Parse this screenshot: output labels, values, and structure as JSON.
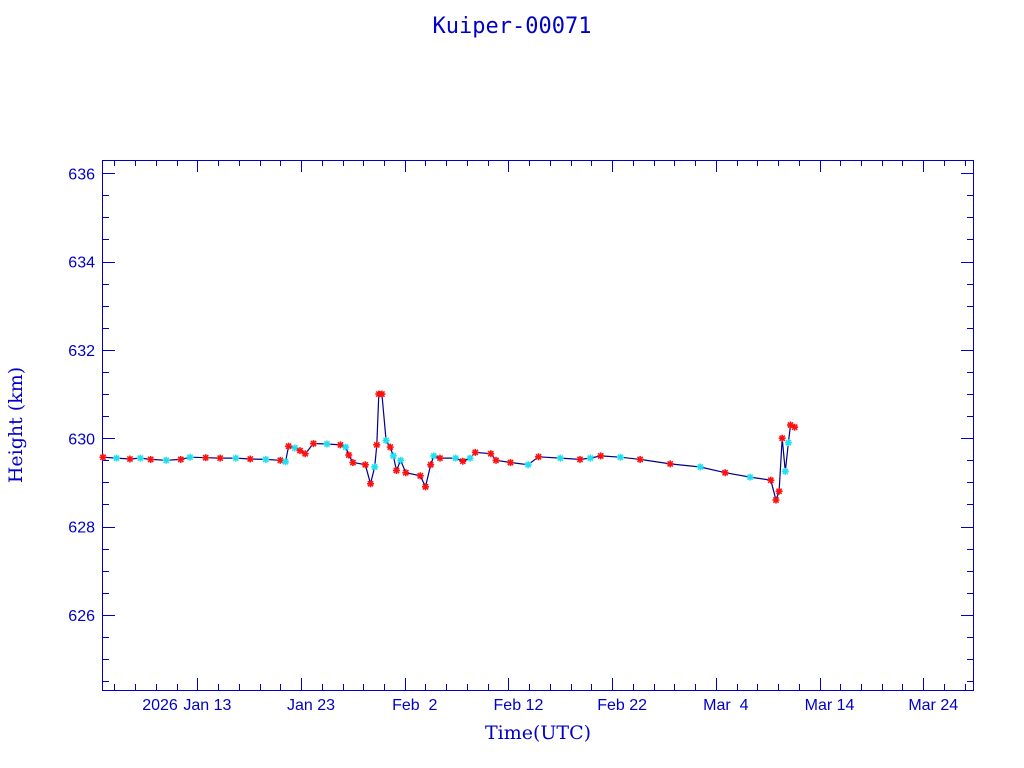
{
  "chart_data": {
    "type": "line",
    "title": "Kuiper-00071",
    "xlabel": "Time(UTC)",
    "ylabel": "Height (km)",
    "x_units": "days since 2026 Jan 1 (UTC)",
    "xlim": [
      2.9,
      86.8
    ],
    "ylim": [
      624.3,
      636.3
    ],
    "x_ticks": [
      {
        "value": 12,
        "label": "Jan 13"
      },
      {
        "value": 22,
        "label": "Jan 23"
      },
      {
        "value": 32,
        "label": "Feb  2"
      },
      {
        "value": 42,
        "label": "Feb 12"
      },
      {
        "value": 52,
        "label": "Feb 22"
      },
      {
        "value": 62,
        "label": "Mar  4"
      },
      {
        "value": 72,
        "label": "Mar 14"
      },
      {
        "value": 82,
        "label": "Mar 24"
      }
    ],
    "year_label": "2026",
    "y_ticks": [
      {
        "value": 626,
        "label": "626"
      },
      {
        "value": 628,
        "label": "628"
      },
      {
        "value": 630,
        "label": "630"
      },
      {
        "value": 632,
        "label": "632"
      },
      {
        "value": 634,
        "label": "634"
      },
      {
        "value": 636,
        "label": "636"
      }
    ],
    "grid": false,
    "colors": {
      "axis": "#0000c8",
      "line": "#00008b",
      "marker_primary": "#ff1010",
      "marker_secondary": "#20e0f0"
    },
    "series": [
      {
        "name": "Height",
        "x": [
          2.9,
          4.2,
          5.5,
          6.5,
          7.5,
          9.0,
          10.4,
          11.3,
          12.8,
          14.2,
          15.7,
          17.1,
          18.6,
          20.0,
          20.5,
          20.8,
          21.4,
          21.9,
          22.4,
          23.2,
          24.5,
          25.8,
          26.3,
          26.6,
          27.0,
          28.2,
          28.7,
          29.1,
          29.3,
          29.5,
          29.8,
          30.2,
          30.6,
          30.9,
          31.2,
          31.6,
          32.1,
          33.5,
          34.0,
          34.5,
          34.8,
          35.4,
          36.9,
          37.6,
          38.3,
          38.8,
          40.3,
          40.8,
          42.2,
          43.9,
          44.9,
          47.0,
          48.9,
          49.9,
          50.9,
          52.8,
          54.7,
          57.6,
          60.5,
          62.9,
          65.3,
          67.3,
          67.8,
          68.1,
          68.4,
          68.7,
          69.0,
          69.2,
          69.6
        ],
        "y": [
          629.57,
          629.55,
          629.53,
          629.55,
          629.52,
          629.5,
          629.52,
          629.57,
          629.56,
          629.55,
          629.55,
          629.53,
          629.52,
          629.5,
          629.47,
          629.82,
          629.78,
          629.72,
          629.65,
          629.88,
          629.87,
          629.85,
          629.8,
          629.62,
          629.45,
          629.4,
          628.97,
          629.35,
          629.85,
          631.0,
          631.0,
          629.95,
          629.8,
          629.6,
          629.27,
          629.5,
          629.22,
          629.15,
          628.9,
          629.4,
          629.6,
          629.55,
          629.55,
          629.48,
          629.55,
          629.68,
          629.65,
          629.5,
          629.45,
          629.4,
          629.58,
          629.55,
          629.52,
          629.55,
          629.6,
          629.57,
          629.52,
          629.42,
          629.35,
          629.22,
          629.12,
          629.05,
          628.6,
          628.8,
          630.0,
          629.25,
          629.9,
          630.3,
          630.25
        ],
        "marker": [
          "r",
          "c",
          "r",
          "c",
          "r",
          "c",
          "r",
          "c",
          "r",
          "r",
          "c",
          "r",
          "c",
          "r",
          "c",
          "r",
          "c",
          "r",
          "r",
          "r",
          "c",
          "r",
          "c",
          "r",
          "r",
          "r",
          "r",
          "c",
          "r",
          "r",
          "r",
          "c",
          "r",
          "c",
          "r",
          "c",
          "r",
          "r",
          "r",
          "r",
          "c",
          "r",
          "c",
          "r",
          "c",
          "r",
          "r",
          "r",
          "r",
          "c",
          "r",
          "c",
          "r",
          "c",
          "r",
          "c",
          "r",
          "r",
          "c",
          "r",
          "c",
          "r",
          "r",
          "r",
          "r",
          "c",
          "c",
          "r",
          "r"
        ]
      }
    ]
  }
}
